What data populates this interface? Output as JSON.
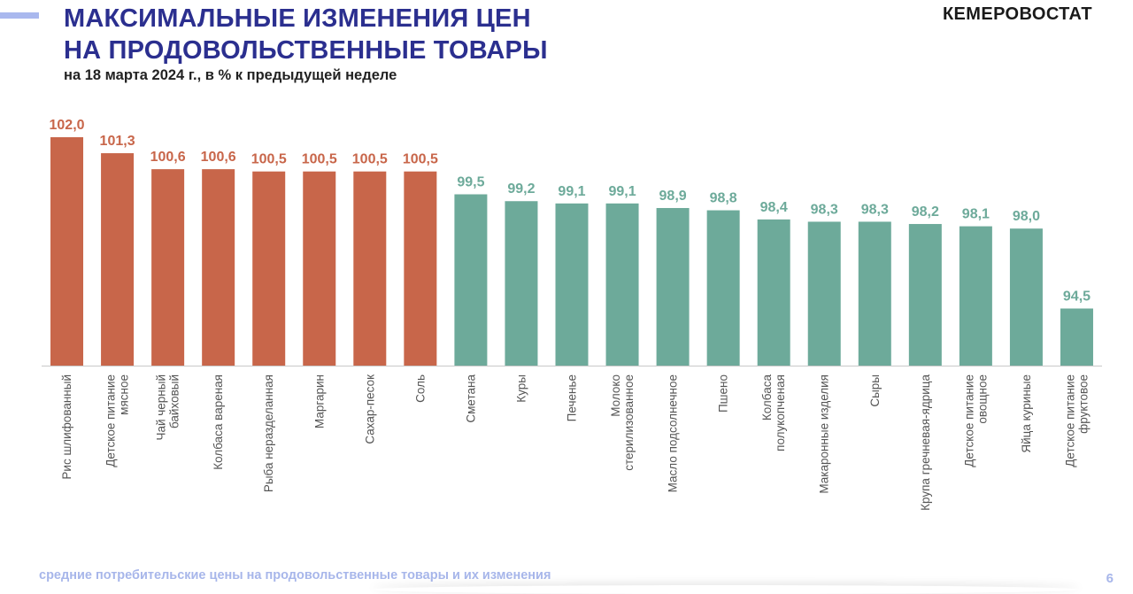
{
  "header": {
    "title_line1": "МАКСИМАЛЬНЫЕ ИЗМЕНЕНИЯ ЦЕН",
    "title_line2": "НА ПРОДОВОЛЬСТВЕННЫЕ ТОВАРЫ",
    "subtitle": "на 18 марта 2024 г., в % к предыдущей неделе",
    "brand": "КЕМЕРОВОСТАТ"
  },
  "footer": {
    "caption": "средние потребительские цены на продовольственные товары и их изменения",
    "page_number": "6"
  },
  "colors": {
    "increase": "#c8664a",
    "decrease": "#6daa9a",
    "title": "#2b2f8f",
    "accent": "#a9b8ee"
  },
  "chart_data": {
    "type": "bar",
    "categories": [
      "Рис шлифованный",
      "Детское питание мясное",
      "Чай черный байховый",
      "Колбаса вареная",
      "Рыба неразделанная",
      "Маргарин",
      "Сахар-песок",
      "Соль",
      "Сметана",
      "Куры",
      "Печенье",
      "Молоко стерилизованное",
      "Масло подсолнечное",
      "Пшено",
      "Колбаса полукопченая",
      "Макаронные изделия",
      "Сыры",
      "Крупа гречневая-ядрица",
      "Детское питание овощное",
      "Яйца куриные",
      "Детское питание фруктовое"
    ],
    "category_lines": [
      [
        "Рис шлифованный"
      ],
      [
        "Детское питание",
        "мясное"
      ],
      [
        "Чай черный",
        "байховый"
      ],
      [
        "Колбаса вареная"
      ],
      [
        "Рыба неразделанная"
      ],
      [
        "Маргарин"
      ],
      [
        "Сахар-песок"
      ],
      [
        "Соль"
      ],
      [
        "Сметана"
      ],
      [
        "Куры"
      ],
      [
        "Печенье"
      ],
      [
        "Молоко",
        "стерилизованное"
      ],
      [
        "Масло подсолнечное"
      ],
      [
        "Пшено"
      ],
      [
        "Колбаса",
        "полукопченая"
      ],
      [
        "Макаронные изделия"
      ],
      [
        "Сыры"
      ],
      [
        "Крупа гречневая-ядрица"
      ],
      [
        "Детское питание",
        "овощное"
      ],
      [
        "Яйца куриные"
      ],
      [
        "Детское питание",
        "фруктовое"
      ]
    ],
    "values": [
      102.0,
      101.3,
      100.6,
      100.6,
      100.5,
      100.5,
      100.5,
      100.5,
      99.5,
      99.2,
      99.1,
      99.1,
      98.9,
      98.8,
      98.4,
      98.3,
      98.3,
      98.2,
      98.1,
      98.0,
      94.5
    ],
    "value_labels": [
      "102,0",
      "101,3",
      "100,6",
      "100,6",
      "100,5",
      "100,5",
      "100,5",
      "100,5",
      "99,5",
      "99,2",
      "99,1",
      "99,1",
      "98,9",
      "98,8",
      "98,4",
      "98,3",
      "98,3",
      "98,2",
      "98,1",
      "98,0",
      "94,5"
    ],
    "ylim": [
      92.0,
      102.0
    ],
    "reference": 100,
    "grid": false,
    "legend": "none"
  }
}
